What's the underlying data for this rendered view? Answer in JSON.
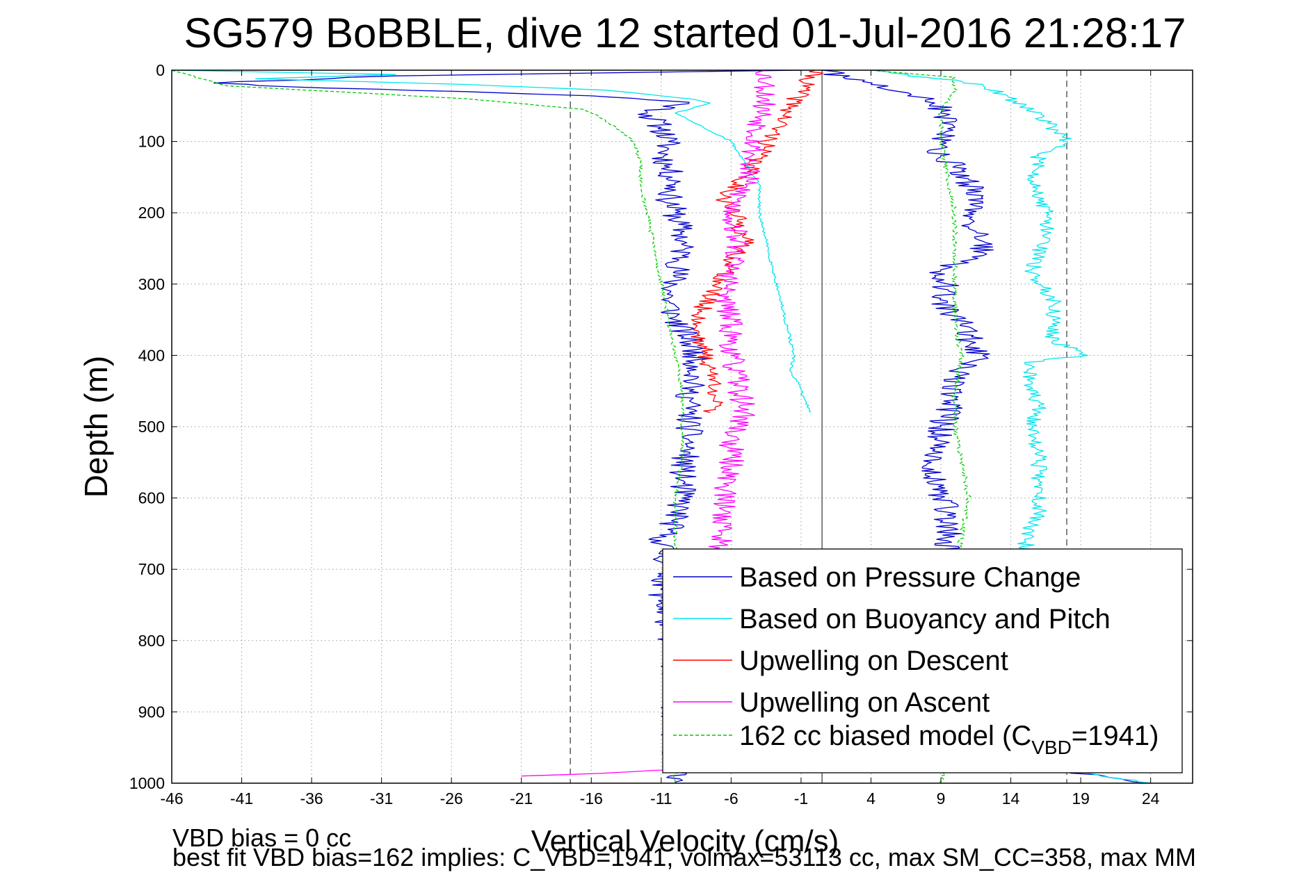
{
  "chart_data": {
    "type": "line",
    "title": "SG579 BoBBLE, dive 12 started 01-Jul-2016 21:28:17",
    "xlabel": "Vertical Velocity (cm/s)",
    "ylabel": "Depth (m)",
    "xlim": [
      -46,
      27
    ],
    "ylim": [
      0,
      1000
    ],
    "y_reversed": true,
    "grid": true,
    "x_ticks": [
      -46,
      -41,
      -36,
      -31,
      -26,
      -21,
      -16,
      -11,
      -6,
      -1,
      4,
      9,
      14,
      19,
      24
    ],
    "y_ticks": [
      0,
      100,
      200,
      300,
      400,
      500,
      600,
      700,
      800,
      900,
      1000
    ],
    "reference_lines": [
      {
        "x": -17.5,
        "style": "dashed"
      },
      {
        "x": 0.5,
        "style": "solid"
      },
      {
        "x": 18,
        "style": "dashed"
      }
    ],
    "legend_position": "bottom-right",
    "legend": [
      {
        "label": "Based on Pressure Change",
        "color": "#0000cc",
        "style": "solid"
      },
      {
        "label": "Based on Buoyancy and Pitch",
        "color": "#00e5ee",
        "style": "solid"
      },
      {
        "label": "Upwelling on Descent",
        "color": "#ff0000",
        "style": "solid"
      },
      {
        "label": "Upwelling on Ascent",
        "color": "#ff00ff",
        "style": "solid"
      },
      {
        "label_prefix": "162 cc biased model (C",
        "label_sub": "VBD",
        "label_suffix": "=1941)",
        "color": "#00cc00",
        "style": "dashed"
      }
    ],
    "series": [
      {
        "name": "Based on Pressure Change",
        "color": "#0000cc",
        "jitter": 1.0,
        "seed": 11,
        "y": [
          0,
          8,
          18,
          25,
          30,
          36,
          45,
          60,
          80,
          100,
          120,
          140,
          160,
          180,
          200,
          230,
          260,
          290,
          320,
          350,
          380,
          400,
          420,
          450,
          480,
          520,
          560,
          600,
          630,
          660,
          700,
          740,
          780,
          820,
          860,
          900,
          940,
          980,
          1000
        ],
        "x": [
          -1,
          -30,
          -43,
          -35,
          -25,
          -16,
          -9,
          -12,
          -11,
          -10.5,
          -10.8,
          -10.5,
          -10,
          -10.5,
          -10,
          -9.5,
          -9.5,
          -10,
          -10.5,
          -10,
          -9,
          -8.5,
          -8.5,
          -9,
          -9,
          -9,
          -9.5,
          -9.5,
          -10,
          -11,
          -10.5,
          -11,
          -10.5,
          -10,
          -10,
          -10,
          -10,
          -10,
          -10
        ]
      },
      {
        "name": "Based on Pressure Change ascent",
        "color": "#0000cc",
        "jitter": 1.0,
        "seed": 23,
        "y": [
          1000,
          960,
          920,
          880,
          840,
          800,
          760,
          720,
          680,
          660,
          620,
          600,
          560,
          520,
          500,
          460,
          430,
          400,
          380,
          360,
          340,
          320,
          300,
          280,
          260,
          240,
          220,
          200,
          180,
          160,
          140,
          120,
          100,
          80,
          60,
          40,
          20,
          0
        ],
        "x": [
          24,
          9,
          9,
          9,
          9,
          9,
          9,
          9,
          9.5,
          9.5,
          9.5,
          9,
          8.5,
          9,
          9,
          10,
          10,
          12,
          11,
          11,
          9.5,
          9,
          9.5,
          9,
          12,
          12,
          11,
          11,
          12,
          11,
          10.5,
          9,
          9,
          10,
          9,
          8.5,
          4,
          0.5
        ]
      },
      {
        "name": "Based on Buoyancy and Pitch",
        "color": "#00e5ee",
        "jitter": 0.12,
        "seed": 31,
        "y": [
          0,
          6,
          12,
          20,
          28,
          40,
          46,
          60,
          80,
          100,
          130,
          160,
          200,
          240,
          280,
          320,
          360,
          400,
          420,
          440,
          460,
          480
        ],
        "x": [
          -46,
          -30,
          -40,
          -25,
          -15,
          -9,
          -7.5,
          -10,
          -8,
          -6,
          -5,
          -4,
          -4,
          -3.5,
          -3,
          -2.5,
          -2,
          -1.5,
          -1.8,
          -1.2,
          -0.8,
          -0.3
        ]
      },
      {
        "name": "Based on Buoyancy and Pitch ascent",
        "color": "#00e5ee",
        "jitter": 0.6,
        "seed": 37,
        "y": [
          1000,
          980,
          940,
          900,
          860,
          800,
          740,
          700,
          660,
          620,
          580,
          540,
          500,
          470,
          440,
          410,
          400,
          380,
          350,
          320,
          300,
          280,
          260,
          230,
          200,
          160,
          120,
          100,
          80,
          50,
          20,
          10,
          0
        ],
        "x": [
          24,
          18,
          15,
          15.5,
          15,
          15.5,
          15,
          15.5,
          15,
          16,
          16,
          16,
          15.5,
          16,
          15.5,
          15,
          19.5,
          17,
          17,
          17,
          16,
          15.5,
          16,
          16.5,
          16.5,
          15.5,
          16,
          18,
          17,
          15,
          12,
          8,
          4
        ]
      },
      {
        "name": "Upwelling on Descent",
        "color": "#ff0000",
        "jitter": 0.7,
        "seed": 41,
        "y": [
          0,
          150,
          180,
          210,
          240,
          270,
          300,
          330,
          360,
          390,
          420,
          450,
          480
        ],
        "x": [
          0,
          -5,
          -6.5,
          -5.5,
          -5,
          -6,
          -7,
          -8,
          -8.5,
          -8,
          -7.5,
          -7,
          -7.5
        ]
      },
      {
        "name": "Upwelling on Ascent",
        "color": "#ff00ff",
        "jitter": 0.9,
        "seed": 53,
        "y": [
          0,
          40,
          80,
          120,
          160,
          200,
          240,
          280,
          320,
          360,
          400,
          440,
          480,
          520,
          560,
          600,
          640,
          680,
          700,
          740,
          780,
          820,
          860,
          900,
          940,
          980,
          990
        ],
        "x": [
          -3.5,
          -3.5,
          -4,
          -4.5,
          -5,
          -6,
          -5.5,
          -6,
          -6.5,
          -6,
          -6,
          -5.5,
          -5,
          -6,
          -6,
          -6.5,
          -6.5,
          -7,
          -7,
          -6.5,
          -6.5,
          -6.5,
          -6.5,
          -6.5,
          -7,
          -8,
          -21
        ]
      },
      {
        "name": "162 cc biased model (CVBD=1941)",
        "color": "#00cc00",
        "dashed": true,
        "jitter": 0.15,
        "seed": 61,
        "y": [
          0,
          22,
          40,
          55,
          70,
          100,
          130,
          160,
          200,
          250,
          300,
          350,
          400,
          450,
          500,
          550,
          600,
          650,
          700,
          750,
          800,
          850,
          900,
          950,
          1000
        ],
        "x": [
          -46,
          -42,
          -25,
          -16.5,
          -15,
          -13,
          -12.5,
          -12.5,
          -12,
          -11.5,
          -11,
          -10.5,
          -10,
          -9.5,
          -9.5,
          -9.5,
          -10,
          -10,
          -10,
          -10,
          -10,
          -10,
          -10,
          -10,
          -10
        ]
      },
      {
        "name": "162 cc biased model ascent",
        "color": "#00cc00",
        "dashed": true,
        "jitter": 0.2,
        "seed": 67,
        "y": [
          1000,
          950,
          900,
          850,
          800,
          750,
          700,
          650,
          600,
          550,
          500,
          450,
          400,
          350,
          300,
          250,
          200,
          150,
          100,
          60,
          30,
          10,
          0
        ],
        "x": [
          9,
          10,
          10,
          10,
          10,
          10,
          10,
          10.5,
          11,
          10.5,
          10,
          10,
          10.5,
          10,
          10,
          10,
          10,
          9.5,
          9,
          9,
          10,
          10,
          4
        ]
      }
    ]
  },
  "footnotes": {
    "line1": "VBD bias = 0 cc",
    "line2": "best fit VBD bias=162 implies: C_VBD=1941, volmax=53113 cc, max SM_CC=358, max MM"
  }
}
